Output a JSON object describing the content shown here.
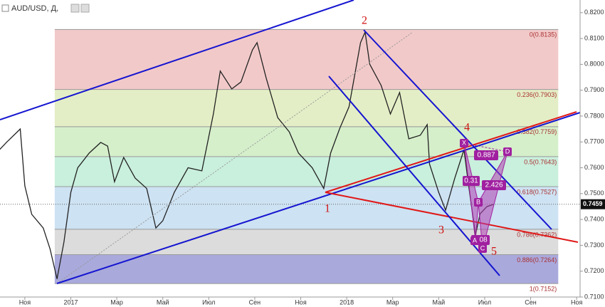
{
  "chart_data": {
    "type": "line",
    "title": "AUD/USD, Д,",
    "x": [
      -1.1,
      -0.8,
      -0.2,
      0,
      0.3,
      0.8,
      1.1,
      1.4,
      1.7,
      2.0,
      2.3,
      2.8,
      3.3,
      3.6,
      3.9,
      4.3,
      4.8,
      5.3,
      5.7,
      6.0,
      6.5,
      7.1,
      7.7,
      8.2,
      8.5,
      9.0,
      9.4,
      9.9,
      10.1,
      10.5,
      11.0,
      11.5,
      11.9,
      12.5,
      13.0,
      13.3,
      13.7,
      14.1,
      14.6,
      14.8,
      15.0,
      15.5,
      15.9,
      16.3,
      16.7,
      17.2,
      17.5,
      17.6,
      18.0,
      18.3,
      18.7,
      19.1,
      19.3,
      19.6,
      19.8,
      20.1,
      20.4
    ],
    "series": [
      {
        "color": "#222222",
        "values": [
          0.767,
          0.7698,
          0.775,
          0.753,
          0.742,
          0.7367,
          0.7285,
          0.717,
          0.7312,
          0.7505,
          0.76,
          0.7657,
          0.7698,
          0.7684,
          0.7546,
          0.764,
          0.756,
          0.752,
          0.7367,
          0.7395,
          0.7505,
          0.76,
          0.7588,
          0.7808,
          0.7974,
          0.7905,
          0.7932,
          0.8056,
          0.8084,
          0.7946,
          0.7794,
          0.7739,
          0.7657,
          0.76,
          0.752,
          0.7657,
          0.7753,
          0.7836,
          0.8084,
          0.8125,
          0.8001,
          0.7918,
          0.7808,
          0.7891,
          0.7712,
          0.7726,
          0.7767,
          0.7615,
          0.7505,
          0.7436,
          0.756,
          0.767,
          0.7533,
          0.734,
          0.7422,
          0.745,
          0.7459
        ]
      }
    ],
    "xlim": [
      -1.08,
      24.15
    ],
    "xticks": [
      {
        "value": 0,
        "label": "Ноя"
      },
      {
        "value": 2,
        "label": "2017"
      },
      {
        "value": 4,
        "label": "Мар"
      },
      {
        "value": 6,
        "label": "Май"
      },
      {
        "value": 8,
        "label": "Июл"
      },
      {
        "value": 10,
        "label": "Сен"
      },
      {
        "value": 12,
        "label": "Ноя"
      },
      {
        "value": 14,
        "label": "2018"
      },
      {
        "value": 16,
        "label": "Мар"
      },
      {
        "value": 18,
        "label": "Май"
      },
      {
        "value": 20,
        "label": "Июл"
      },
      {
        "value": 22,
        "label": "Сен"
      },
      {
        "value": 24,
        "label": "Ноя"
      }
    ],
    "ylim": [
      0.71,
      0.8249
    ],
    "yticks": [
      {
        "value": 0.82,
        "label": "0.8200"
      },
      {
        "value": 0.81,
        "label": "0.8100"
      },
      {
        "value": 0.8,
        "label": "0.8000"
      },
      {
        "value": 0.79,
        "label": "0.7900"
      },
      {
        "value": 0.78,
        "label": "0.7800"
      },
      {
        "value": 0.77,
        "label": "0.7700"
      },
      {
        "value": 0.76,
        "label": "0.7600"
      },
      {
        "value": 0.75,
        "label": "0.7500"
      },
      {
        "value": 0.74,
        "label": "0.7400"
      },
      {
        "value": 0.73,
        "label": "0.7300"
      },
      {
        "value": 0.72,
        "label": "0.7200"
      },
      {
        "value": 0.71,
        "label": "0.7100"
      }
    ],
    "last_price": {
      "value": 0.7459,
      "label": "0.7459"
    },
    "fib_levels": [
      {
        "value": 0.8135,
        "label": "0(0.8135)",
        "color": "#f2c9c9"
      },
      {
        "value": 0.7903,
        "label": "0.236(0.7903)",
        "color": "#e4eec6"
      },
      {
        "value": 0.7759,
        "label": "0.382(0.7759)",
        "color": "#d5efca"
      },
      {
        "value": 0.7643,
        "label": "0.5(0.7643)",
        "color": "#c9efdd"
      },
      {
        "value": 0.7527,
        "label": "0.618(0.7527)",
        "color": "#cde2f2"
      },
      {
        "value": 0.7362,
        "label": "0.786(0.7362)",
        "color": "#dcdcdc"
      },
      {
        "value": 0.7264,
        "label": "0.886(0.7264)",
        "color": "#a9a9dc"
      },
      {
        "value": 0.7152,
        "label": "1(0.7152)"
      }
    ],
    "fib_range": [
      1.3,
      23.2
    ],
    "waves": [
      "1",
      "2",
      "3",
      "4",
      "5"
    ],
    "pattern_points": [
      "X",
      "A",
      "B",
      "C",
      "D"
    ],
    "pattern_ratios": [
      "0.887",
      "0.31",
      "2.426",
      "0.08"
    ]
  }
}
